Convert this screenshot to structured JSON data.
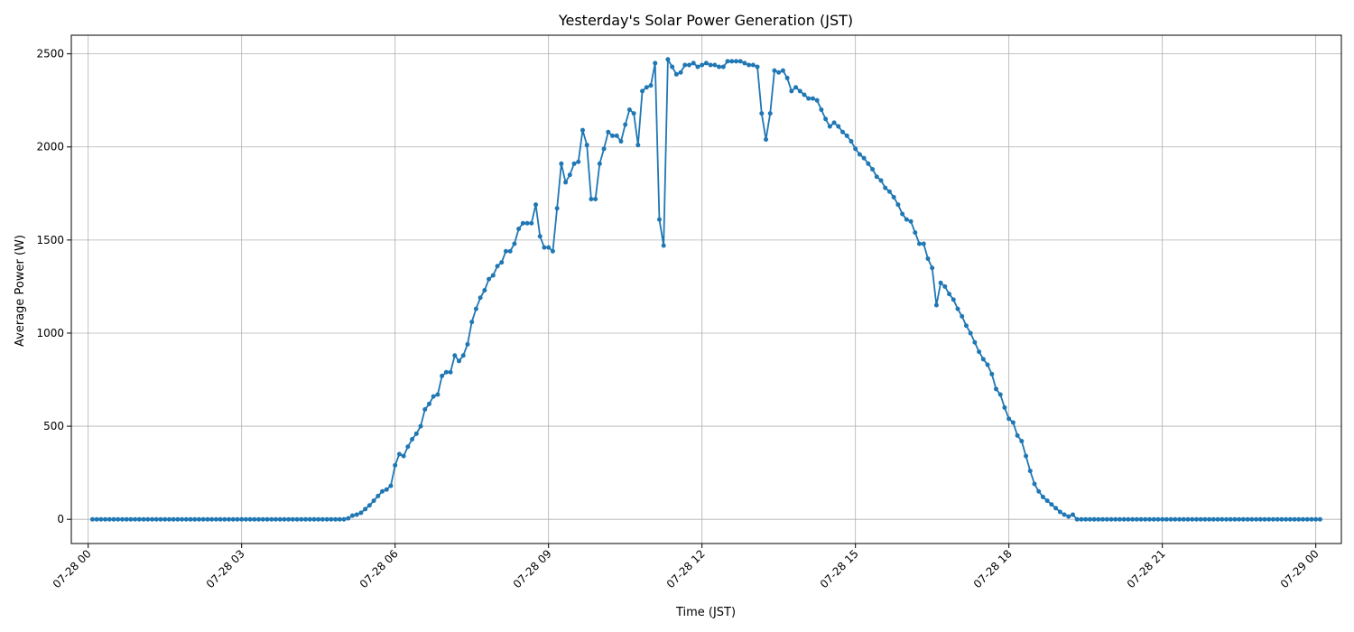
{
  "chart_data": {
    "type": "line",
    "title": "Yesterday's Solar Power Generation (JST)",
    "xlabel": "Time (JST)",
    "ylabel": "Average Power (W)",
    "xlim": [
      -0.33,
      24.5
    ],
    "ylim": [
      -130,
      2600
    ],
    "grid": true,
    "marker": "circle",
    "color": "#1f77b4",
    "x_tick_labels": [
      "07-28 00",
      "07-28 03",
      "07-28 06",
      "07-28 09",
      "07-28 12",
      "07-28 15",
      "07-28 18",
      "07-28 21",
      "07-29 00"
    ],
    "x_tick_hours": [
      0,
      3,
      6,
      9,
      12,
      15,
      18,
      21,
      24
    ],
    "y_ticks": [
      0,
      500,
      1000,
      1500,
      2000,
      2500
    ],
    "y_tick_labels": [
      "0",
      "500",
      "1000",
      "1500",
      "2000",
      "2500"
    ],
    "x_start": "07-28 00:00",
    "interval_minutes": 5,
    "series": [
      {
        "values": [
          0,
          0,
          0,
          0,
          0,
          0,
          0,
          0,
          0,
          0,
          0,
          0,
          0,
          0,
          0,
          0,
          0,
          0,
          0,
          0,
          0,
          0,
          0,
          0,
          0,
          0,
          0,
          0,
          0,
          0,
          0,
          0,
          0,
          0,
          0,
          0,
          0,
          0,
          0,
          0,
          0,
          0,
          0,
          0,
          0,
          0,
          0,
          0,
          0,
          0,
          0,
          0,
          0,
          0,
          0,
          0,
          0,
          0,
          0,
          0,
          5,
          20,
          25,
          35,
          55,
          75,
          100,
          125,
          150,
          160,
          180,
          290,
          350,
          340,
          390,
          430,
          460,
          500,
          590,
          620,
          660,
          670,
          770,
          790,
          790,
          880,
          850,
          880,
          940,
          1060,
          1130,
          1190,
          1230,
          1290,
          1310,
          1360,
          1380,
          1440,
          1440,
          1480,
          1560,
          1590,
          1590,
          1590,
          1690,
          1520,
          1460,
          1460,
          1440,
          1670,
          1910,
          1810,
          1850,
          1910,
          1920,
          2090,
          2010,
          1720,
          1720,
          1910,
          1990,
          2080,
          2060,
          2060,
          2030,
          2120,
          2200,
          2180,
          2010,
          2300,
          2320,
          2330,
          2450,
          1610,
          1470,
          2470,
          2430,
          2390,
          2400,
          2440,
          2440,
          2450,
          2430,
          2440,
          2450,
          2440,
          2440,
          2430,
          2430,
          2460,
          2460,
          2460,
          2460,
          2450,
          2440,
          2440,
          2430,
          2180,
          2040,
          2180,
          2410,
          2400,
          2410,
          2370,
          2300,
          2320,
          2300,
          2280,
          2260,
          2260,
          2250,
          2200,
          2150,
          2110,
          2130,
          2110,
          2080,
          2060,
          2030,
          1990,
          1960,
          1940,
          1910,
          1880,
          1840,
          1820,
          1780,
          1760,
          1730,
          1690,
          1640,
          1610,
          1600,
          1540,
          1480,
          1480,
          1400,
          1350,
          1150,
          1270,
          1250,
          1210,
          1180,
          1130,
          1090,
          1040,
          1000,
          950,
          900,
          860,
          830,
          780,
          700,
          670,
          600,
          540,
          520,
          450,
          420,
          340,
          260,
          190,
          150,
          120,
          100,
          80,
          60,
          40,
          25,
          15,
          25,
          0,
          0,
          0,
          0,
          0,
          0,
          0,
          0,
          0,
          0,
          0,
          0,
          0,
          0,
          0,
          0,
          0,
          0,
          0,
          0,
          0,
          0,
          0,
          0,
          0,
          0,
          0,
          0,
          0,
          0,
          0,
          0,
          0,
          0,
          0,
          0,
          0,
          0,
          0,
          0,
          0,
          0,
          0,
          0,
          0,
          0,
          0,
          0,
          0,
          0,
          0,
          0,
          0,
          0,
          0,
          0,
          0,
          0
        ]
      }
    ]
  }
}
